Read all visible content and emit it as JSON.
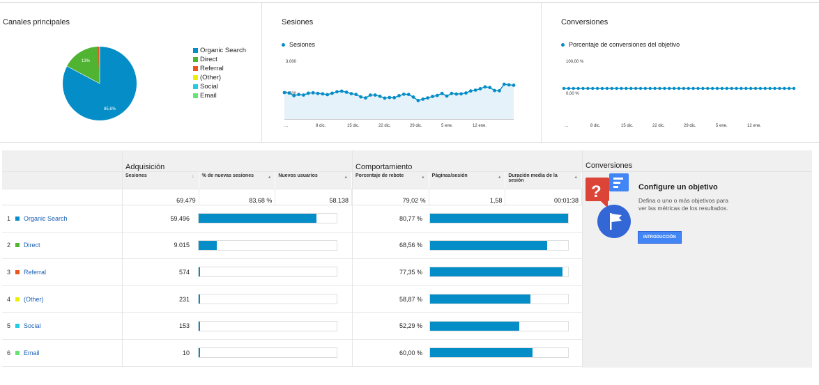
{
  "cards": {
    "channels": {
      "title": "Canales principales",
      "pie_labels": [
        "13%",
        "85,6%"
      ],
      "legend": [
        {
          "label": "Organic Search",
          "color": "#058dc7"
        },
        {
          "label": "Direct",
          "color": "#50b432"
        },
        {
          "label": "Referral",
          "color": "#ed561b"
        },
        {
          "label": "(Other)",
          "color": "#edef00"
        },
        {
          "label": "Social",
          "color": "#24cbe5"
        },
        {
          "label": "Email",
          "color": "#64e572"
        }
      ]
    },
    "sessions": {
      "title": "Sesiones",
      "series_label": "Sesiones",
      "y_top": "3.000",
      "y_mid": "1.500",
      "x_ticks": [
        "...",
        "8 dic.",
        "15 dic.",
        "22 dic.",
        "29 dic.",
        "5 ene.",
        "12 ene."
      ]
    },
    "conversions": {
      "title": "Conversiones",
      "series_label": "Porcentaje de conversiones del objetivo",
      "y_top": "100,00 %",
      "y_mid": "0,00 %",
      "x_ticks": [
        "...",
        "8 dic.",
        "15 dic.",
        "22 dic.",
        "29 dic.",
        "5 ene.",
        "12 ene."
      ]
    }
  },
  "table": {
    "acquisition": {
      "title": "Adquisición",
      "cols": [
        "Sesiones",
        "% de nuevas sesiones",
        "Nuevos usuarios"
      ],
      "totals": [
        "69.479",
        "83,68 %",
        "58.138"
      ]
    },
    "behavior": {
      "title": "Comportamiento",
      "cols": [
        "Porcentaje de rebote",
        "Páginas/sesión",
        "Duración media de la sesión"
      ],
      "totals": [
        "79,02 %",
        "1,58",
        "00:01:38"
      ]
    },
    "rows": [
      {
        "num": "1",
        "name": "Organic Search",
        "color": "#058dc7",
        "sessions": "59.496",
        "sess_frac": 0.856,
        "bounce": "80,77 %",
        "bounce_frac": 1.0
      },
      {
        "num": "2",
        "name": "Direct",
        "color": "#50b432",
        "sessions": "9.015",
        "sess_frac": 0.13,
        "bounce": "68,56 %",
        "bounce_frac": 0.849
      },
      {
        "num": "3",
        "name": "Referral",
        "color": "#ed561b",
        "sessions": "574",
        "sess_frac": 0.008,
        "bounce": "77,35 %",
        "bounce_frac": 0.958
      },
      {
        "num": "4",
        "name": "(Other)",
        "color": "#edef00",
        "sessions": "231",
        "sess_frac": 0.003,
        "bounce": "58,87 %",
        "bounce_frac": 0.729
      },
      {
        "num": "5",
        "name": "Social",
        "color": "#24cbe5",
        "sessions": "153",
        "sess_frac": 0.002,
        "bounce": "52,29 %",
        "bounce_frac": 0.647
      },
      {
        "num": "6",
        "name": "Email",
        "color": "#64e572",
        "sessions": "10",
        "sess_frac": 0.001,
        "bounce": "60,00 %",
        "bounce_frac": 0.743
      }
    ]
  },
  "conversions_panel": {
    "title": "Conversiones",
    "goal_title": "Configure un objetivo",
    "goal_desc": "Defina o uno o más objetivos para ver las métricas de los resultados.",
    "button": "INTRODUCCIÓN"
  },
  "chart_data": {
    "type": "line",
    "title": "Sesiones",
    "ylim": [
      0,
      3000
    ],
    "y_ticks": [
      "1.500",
      "3.000"
    ],
    "x_ticks": [
      "8 dic.",
      "15 dic.",
      "22 dic.",
      "29 dic.",
      "5 ene.",
      "12 ene."
    ],
    "series": [
      {
        "name": "Sesiones",
        "values": [
          1500,
          1480,
          1350,
          1410,
          1380,
          1470,
          1490,
          1460,
          1440,
          1400,
          1470,
          1540,
          1570,
          1520,
          1450,
          1410,
          1290,
          1240,
          1380,
          1380,
          1320,
          1230,
          1260,
          1250,
          1350,
          1420,
          1410,
          1280,
          1110,
          1180,
          1240,
          1310,
          1360,
          1460,
          1330,
          1460,
          1430,
          1440,
          1480,
          1580,
          1620,
          1690,
          1780,
          1750,
          1600,
          1590,
          1910,
          1880,
          1860
        ]
      }
    ]
  }
}
